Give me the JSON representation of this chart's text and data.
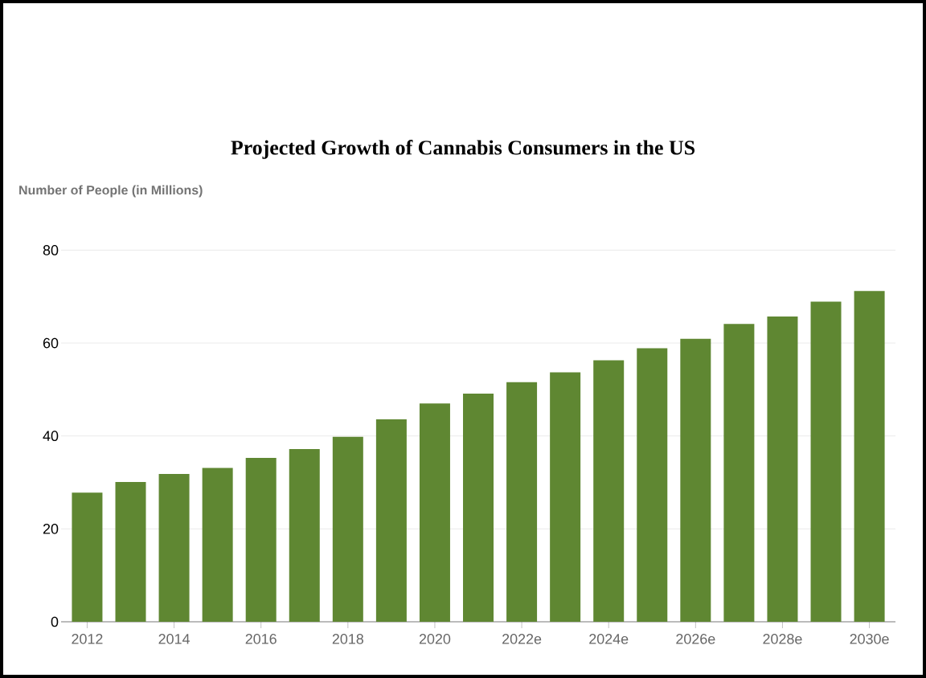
{
  "chart_data": {
    "type": "bar",
    "title": "Projected Growth of Cannabis Consumers in the US",
    "ylabel": "Number of People (in Millions)",
    "categories": [
      "2012",
      null,
      "2014",
      null,
      "2016",
      null,
      "2018",
      null,
      "2020",
      null,
      "2022e",
      null,
      "2024e",
      null,
      "2026e",
      null,
      "2028e",
      null,
      "2030e"
    ],
    "values": [
      27.8,
      30.1,
      31.8,
      33.1,
      35.3,
      37.2,
      39.8,
      43.6,
      47.0,
      49.1,
      51.6,
      53.7,
      56.3,
      58.9,
      60.9,
      64.1,
      65.7,
      68.9,
      71.2
    ],
    "color": "#5f8732",
    "ylim": [
      0,
      80
    ],
    "yticks": [
      0,
      20,
      40,
      60,
      80
    ],
    "grid": "y"
  }
}
